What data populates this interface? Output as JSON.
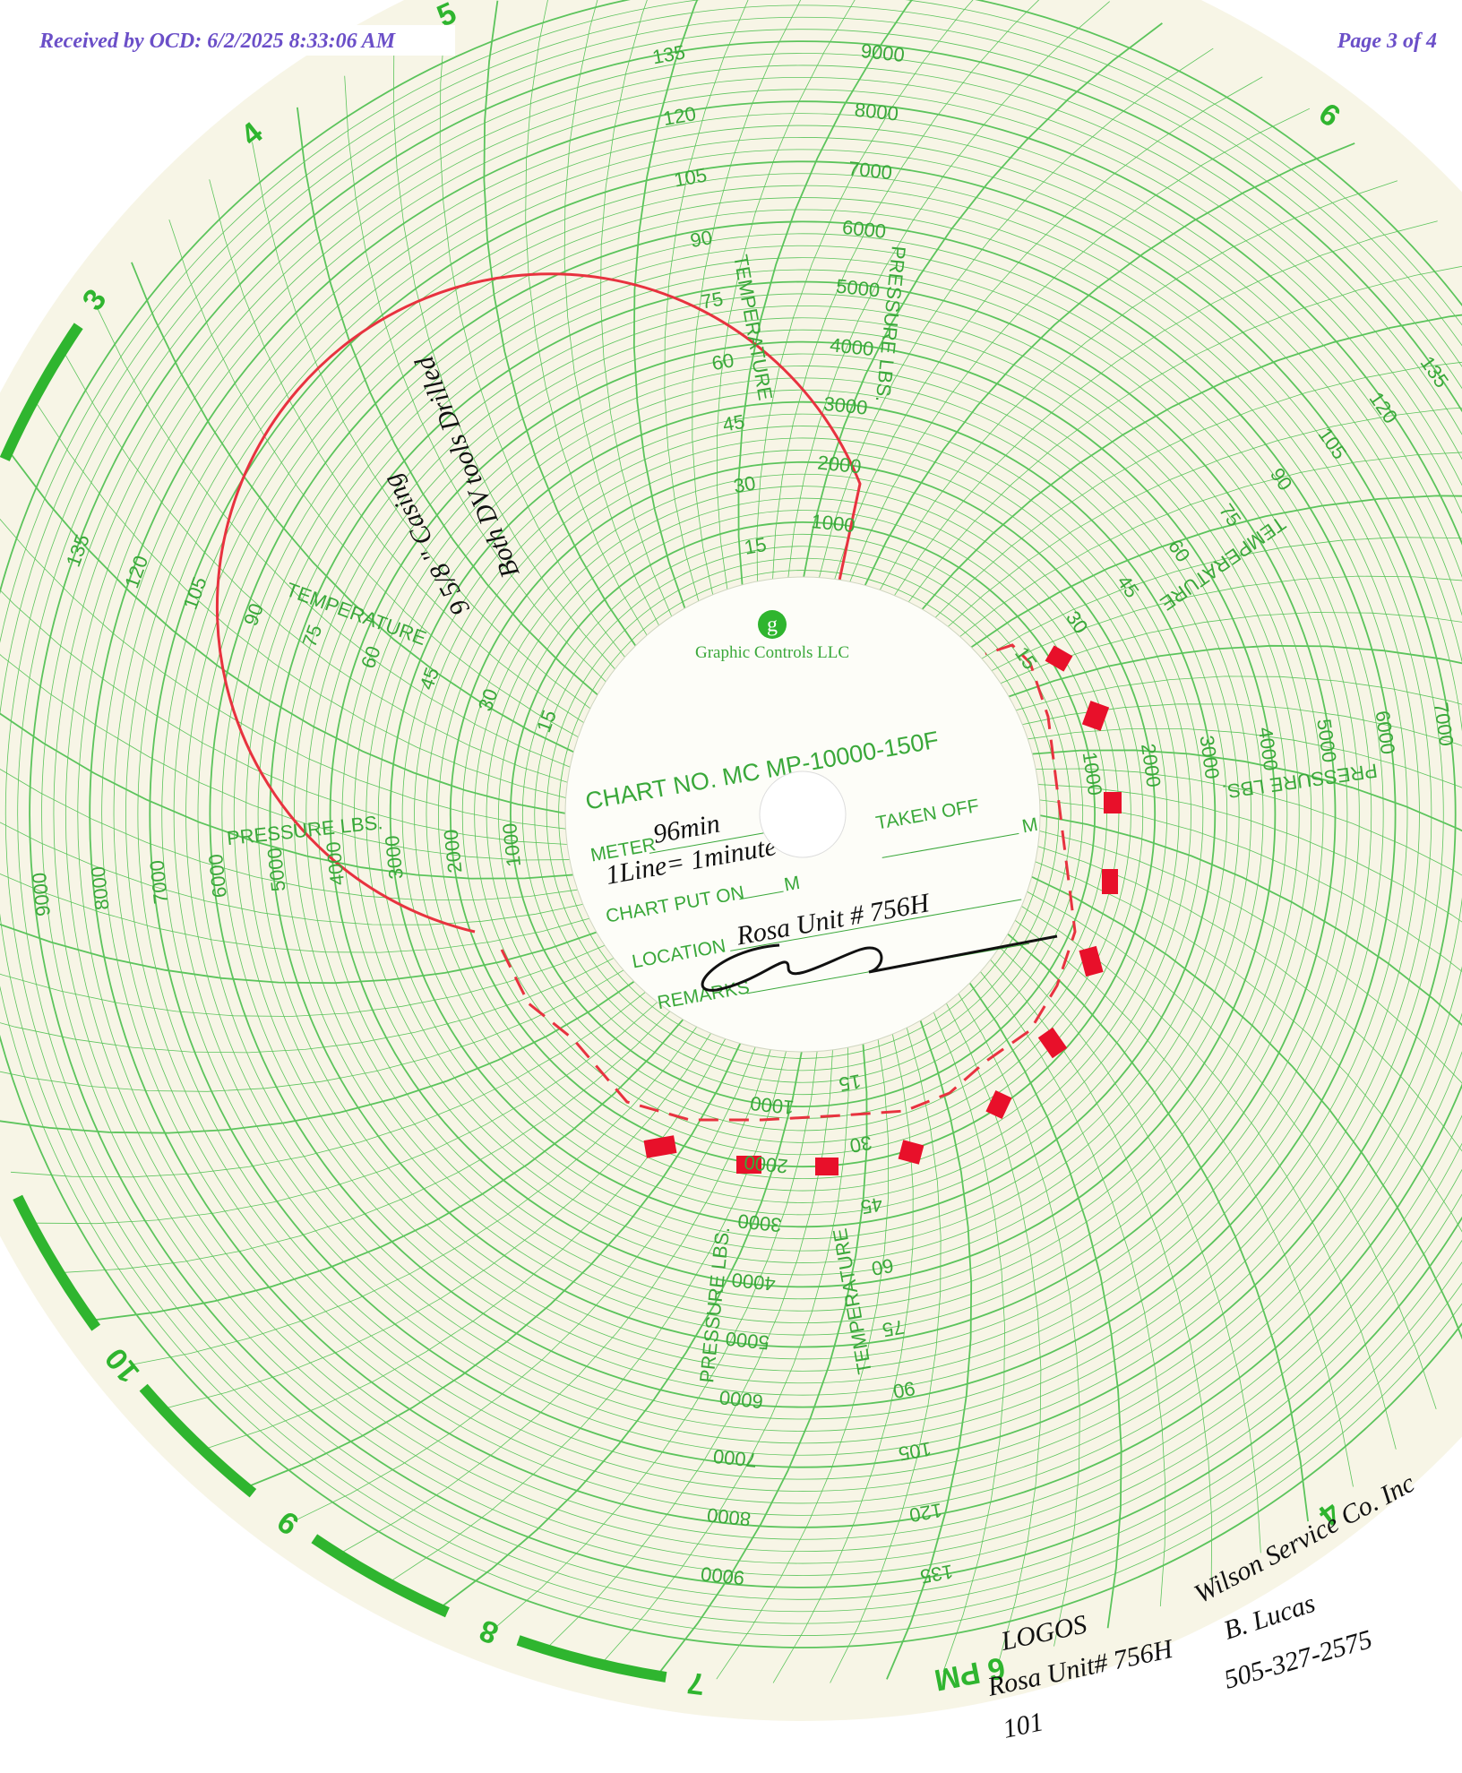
{
  "header": {
    "received": "Received by OCD: 6/2/2025 8:33:06 AM",
    "page": "Page 3 of 4"
  },
  "chart_label": {
    "logo": "g",
    "maker": "Graphic Controls LLC",
    "chart_no": "CHART NO. MC MP-10000-150F",
    "meter_label": "METER",
    "meter_value": "96min",
    "meter_note": "1Line= 1minute",
    "taken_off": "TAKEN OFF",
    "taken_off_unit": "M",
    "put_on": "CHART PUT ON",
    "put_on_unit": "M",
    "location_label": "LOCATION",
    "location_value": "Rosa Unit # 756H",
    "remarks_label": "REMARKS"
  },
  "scales": {
    "pressure_title": "PRESSURE LBS.",
    "pressure": [
      "1000",
      "2000",
      "3000",
      "4000",
      "5000",
      "6000",
      "7000",
      "8000",
      "9000"
    ],
    "temperature_title": "TEMPERATURE",
    "temperature": [
      "15",
      "30",
      "45",
      "60",
      "75",
      "90",
      "105",
      "120",
      "135"
    ]
  },
  "hours": [
    "3",
    "4",
    "5",
    "6",
    "4",
    "6 PM",
    "7",
    "8",
    "9",
    "10"
  ],
  "notes": {
    "casing": "9 5/8 \" Casing",
    "dv_tools": "Both DV tools Drilled",
    "company": "LOGOS",
    "well": "Rosa Unit# 756H",
    "pad": "101",
    "service": "Wilson Service Co. Inc",
    "operator": "B. Lucas",
    "phone": "505-327-2575"
  }
}
